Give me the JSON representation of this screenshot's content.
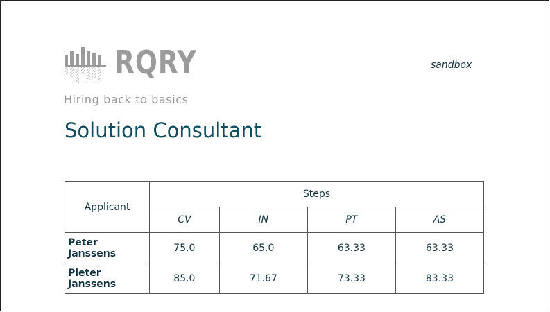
{
  "header": {
    "logo_text": "RQRY",
    "tagline": "Hiring back to basics",
    "environment": "sandbox"
  },
  "page_title": "Solution Consultant",
  "table": {
    "applicant_header": "Applicant",
    "steps_header": "Steps",
    "step_columns": [
      "CV",
      "IN",
      "PT",
      "AS"
    ],
    "rows": [
      {
        "first": "Peter",
        "last": "Janssens",
        "scores": [
          "75.0",
          "65.0",
          "63.33",
          "63.33"
        ]
      },
      {
        "first": "Pieter",
        "last": "Janssens",
        "scores": [
          "85.0",
          "71.67",
          "73.33",
          "83.33"
        ]
      }
    ]
  },
  "colors": {
    "accent": "#0f4c5c",
    "text": "#12343f",
    "logo": "#9b9b9b"
  }
}
